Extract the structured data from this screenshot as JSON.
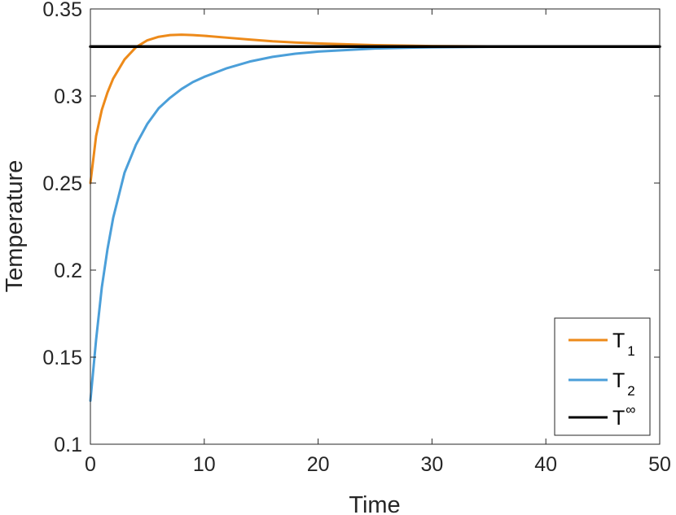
{
  "chart_data": {
    "type": "line",
    "xlabel": "Time",
    "ylabel": "Temperature",
    "xlim": [
      0,
      50
    ],
    "ylim": [
      0.1,
      0.35
    ],
    "xticks": [
      "0",
      "10",
      "20",
      "30",
      "40",
      "50"
    ],
    "yticks": [
      "0.1",
      "0.15",
      "0.2",
      "0.25",
      "0.3",
      "0.35"
    ],
    "grid": false,
    "legend_position": "bottom-right",
    "series": [
      {
        "name": "T",
        "subscript": "1",
        "color": "#ED8A1A",
        "x": [
          0,
          0.5,
          1,
          1.5,
          2,
          3,
          4,
          5,
          6,
          7,
          8,
          9,
          10,
          12,
          14,
          16,
          18,
          20,
          25,
          30,
          35,
          40,
          45,
          50
        ],
        "y": [
          0.25,
          0.277,
          0.292,
          0.302,
          0.31,
          0.321,
          0.328,
          0.332,
          0.334,
          0.335,
          0.3352,
          0.335,
          0.3346,
          0.3335,
          0.3324,
          0.3314,
          0.3307,
          0.3302,
          0.3292,
          0.3287,
          0.3285,
          0.3284,
          0.3284,
          0.3284
        ]
      },
      {
        "name": "T",
        "subscript": "2",
        "color": "#4B9FD9",
        "x": [
          0,
          0.5,
          1,
          1.5,
          2,
          3,
          4,
          5,
          6,
          7,
          8,
          9,
          10,
          12,
          14,
          16,
          18,
          20,
          25,
          30,
          35,
          40,
          45,
          50
        ],
        "y": [
          0.125,
          0.16,
          0.19,
          0.212,
          0.23,
          0.256,
          0.272,
          0.284,
          0.293,
          0.299,
          0.304,
          0.308,
          0.311,
          0.316,
          0.3198,
          0.3225,
          0.3243,
          0.3255,
          0.3273,
          0.328,
          0.3283,
          0.3284,
          0.3284,
          0.3284
        ]
      },
      {
        "name": "T",
        "superscript": "∞",
        "color": "#000000",
        "x": [
          0,
          50
        ],
        "y": [
          0.3284,
          0.3284
        ]
      }
    ]
  }
}
